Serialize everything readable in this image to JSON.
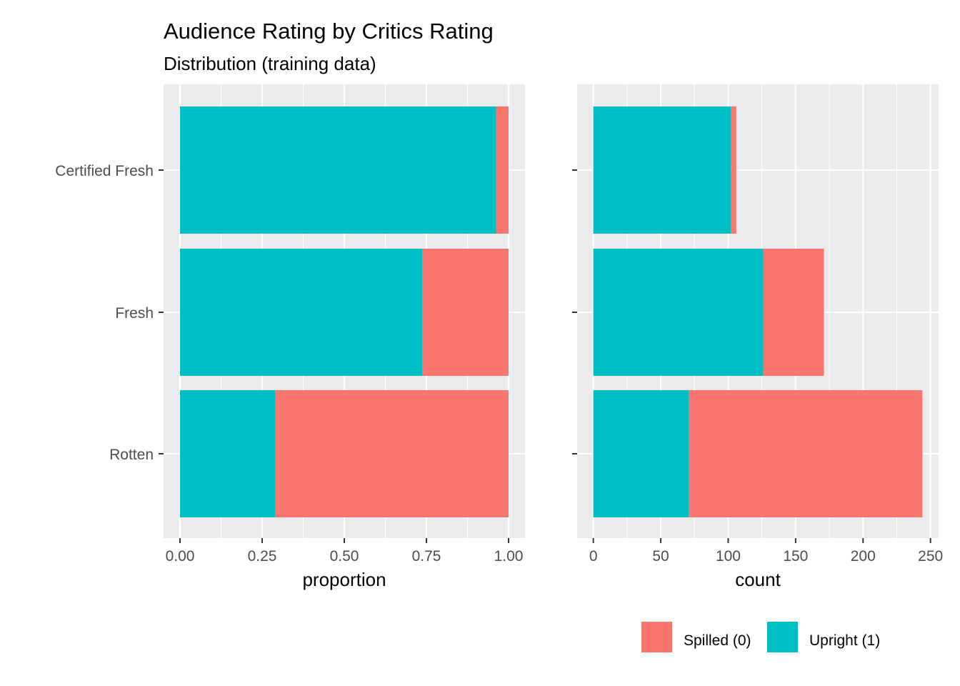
{
  "title": "Audience Rating by Critics Rating",
  "subtitle": "Distribution (training data)",
  "colors": {
    "spilled": "#F8766D",
    "upright": "#00BFC4",
    "panel_bg": "#EBEBEB",
    "grid": "#FFFFFF"
  },
  "legend": {
    "position": "bottom-right",
    "items": [
      {
        "label": "Spilled (0)",
        "color": "#F8766D"
      },
      {
        "label": "Upright (1)",
        "color": "#00BFC4"
      }
    ]
  },
  "chart_data": [
    {
      "type": "bar",
      "orientation": "horizontal",
      "stacked": true,
      "categories": [
        "Certified Fresh",
        "Fresh",
        "Rotten"
      ],
      "series": [
        {
          "name": "Upright (1)",
          "values": [
            0.962,
            0.737,
            0.29
          ]
        },
        {
          "name": "Spilled (0)",
          "values": [
            0.038,
            0.263,
            0.71
          ]
        }
      ],
      "xlabel": "proportion",
      "xlim": [
        -0.05,
        1.05
      ],
      "xticks": [
        "0.00",
        "0.25",
        "0.50",
        "0.75",
        "1.00"
      ],
      "grid": true
    },
    {
      "type": "bar",
      "orientation": "horizontal",
      "stacked": true,
      "categories": [
        "Certified Fresh",
        "Fresh",
        "Rotten"
      ],
      "series": [
        {
          "name": "Upright (1)",
          "values": [
            102,
            126,
            71
          ]
        },
        {
          "name": "Spilled (0)",
          "values": [
            4,
            45,
            173
          ]
        }
      ],
      "xlabel": "count",
      "xlim": [
        -12,
        256
      ],
      "xticks": [
        "0",
        "50",
        "100",
        "150",
        "200",
        "250"
      ],
      "grid": true
    }
  ]
}
